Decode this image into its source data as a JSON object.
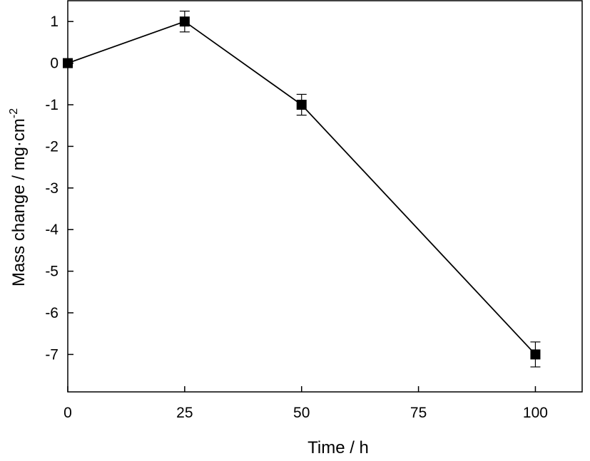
{
  "chart_data": {
    "type": "line",
    "title": "",
    "xlabel": "Time / h",
    "ylabel": "Mass change / mg·cm",
    "ylabel_superscript": "-2",
    "xlim": [
      0,
      110
    ],
    "ylim": [
      -7.9,
      1.5
    ],
    "xticks": [
      0,
      25,
      50,
      75,
      100
    ],
    "xtick_labels": [
      "0",
      "25",
      "50",
      "75",
      "100"
    ],
    "yticks": [
      1,
      0,
      -1,
      -2,
      -3,
      -4,
      -5,
      -6,
      -7
    ],
    "ytick_labels": [
      "1",
      "0",
      "-1",
      "-2",
      "-3",
      "-4",
      "-5",
      "-6",
      "-7"
    ],
    "grid": false,
    "legend": "none",
    "series": [
      {
        "x": [
          0,
          25,
          50,
          100
        ],
        "y": [
          0,
          1,
          -1,
          -7
        ],
        "error": [
          0,
          0.25,
          0.25,
          0.3
        ],
        "marker": "square",
        "color": "#000000"
      }
    ]
  }
}
